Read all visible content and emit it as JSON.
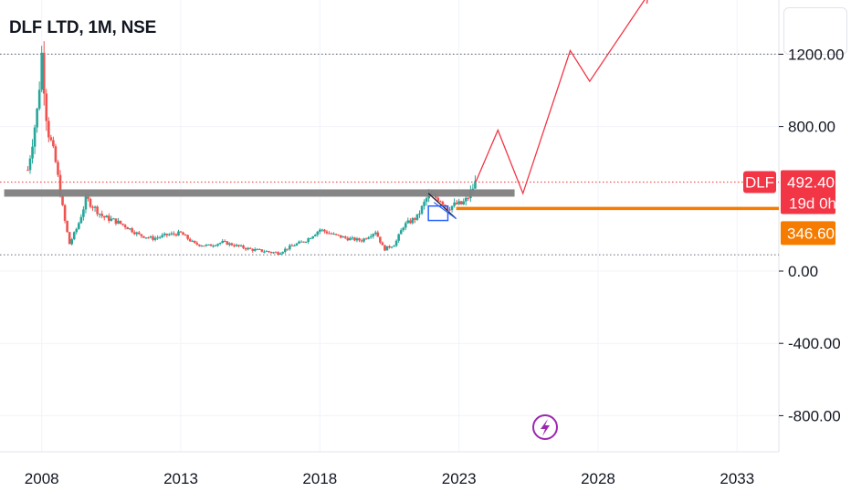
{
  "header": {
    "title": "DLF LTD, 1M, NSE"
  },
  "colors": {
    "up": "#26a69a",
    "down": "#ef5350",
    "resistance": "#808080",
    "support": "#f57c00",
    "projection": "#f23645",
    "pattern": "#2962ff",
    "alert": "#9c27b0"
  },
  "chart_data": {
    "type": "candlestick",
    "symbol": "DLF",
    "interval": "1M",
    "exchange": "NSE",
    "x_axis": {
      "ticks": [
        "2008",
        "2013",
        "2018",
        "2023",
        "2028",
        "2033"
      ],
      "range": [
        2006.5,
        2034.5
      ]
    },
    "y_axis": {
      "ticks": [
        1200,
        800,
        0,
        -400,
        -800
      ],
      "tick_labels": [
        "1200.00",
        "800.00",
        "0.00",
        "-400.00",
        "-800.00"
      ],
      "range": [
        -1000,
        1500
      ]
    },
    "price_path": [
      [
        2007.5,
        560
      ],
      [
        2007.85,
        900
      ],
      [
        2008.0,
        1200
      ],
      [
        2008.2,
        800
      ],
      [
        2008.5,
        600
      ],
      [
        2008.8,
        300
      ],
      [
        2009.0,
        150
      ],
      [
        2009.3,
        250
      ],
      [
        2009.6,
        400
      ],
      [
        2009.9,
        350
      ],
      [
        2010.2,
        300
      ],
      [
        2010.6,
        280
      ],
      [
        2011.0,
        250
      ],
      [
        2011.5,
        200
      ],
      [
        2012.0,
        180
      ],
      [
        2012.5,
        200
      ],
      [
        2013.0,
        210
      ],
      [
        2013.5,
        150
      ],
      [
        2014.0,
        140
      ],
      [
        2014.5,
        160
      ],
      [
        2015.0,
        140
      ],
      [
        2015.5,
        120
      ],
      [
        2016.0,
        110
      ],
      [
        2016.5,
        100
      ],
      [
        2017.0,
        140
      ],
      [
        2017.5,
        170
      ],
      [
        2018.0,
        230
      ],
      [
        2018.5,
        200
      ],
      [
        2019.0,
        180
      ],
      [
        2019.5,
        170
      ],
      [
        2020.0,
        220
      ],
      [
        2020.3,
        120
      ],
      [
        2020.7,
        150
      ],
      [
        2021.0,
        250
      ],
      [
        2021.5,
        300
      ],
      [
        2021.9,
        420
      ],
      [
        2022.3,
        400
      ],
      [
        2022.6,
        350
      ],
      [
        2022.9,
        370
      ],
      [
        2023.1,
        370
      ],
      [
        2023.3,
        400
      ],
      [
        2023.6,
        492
      ]
    ],
    "last_price": {
      "symbol_tag": "DLF",
      "value": "492.40",
      "countdown": "19d 0h"
    },
    "support_line": {
      "value": 346.6,
      "label": "346.60"
    },
    "resistance_zone": {
      "value": 432
    },
    "dotted_levels": [
      1200,
      492.4,
      90
    ],
    "projection": [
      [
        2023.6,
        492
      ],
      [
        2024.4,
        780
      ],
      [
        2025.3,
        430
      ],
      [
        2027.0,
        1220
      ],
      [
        2027.7,
        1050
      ],
      [
        2029.8,
        1530
      ]
    ],
    "pattern": {
      "desc_line": [
        [
          2021.9,
          430
        ],
        [
          2022.9,
          290
        ]
      ],
      "desc_line_2": [
        [
          2022.1,
          380
        ],
        [
          2022.9,
          290
        ]
      ],
      "box": [
        [
          2021.9,
          2022.6
        ],
        [
          280,
          360
        ]
      ]
    }
  }
}
